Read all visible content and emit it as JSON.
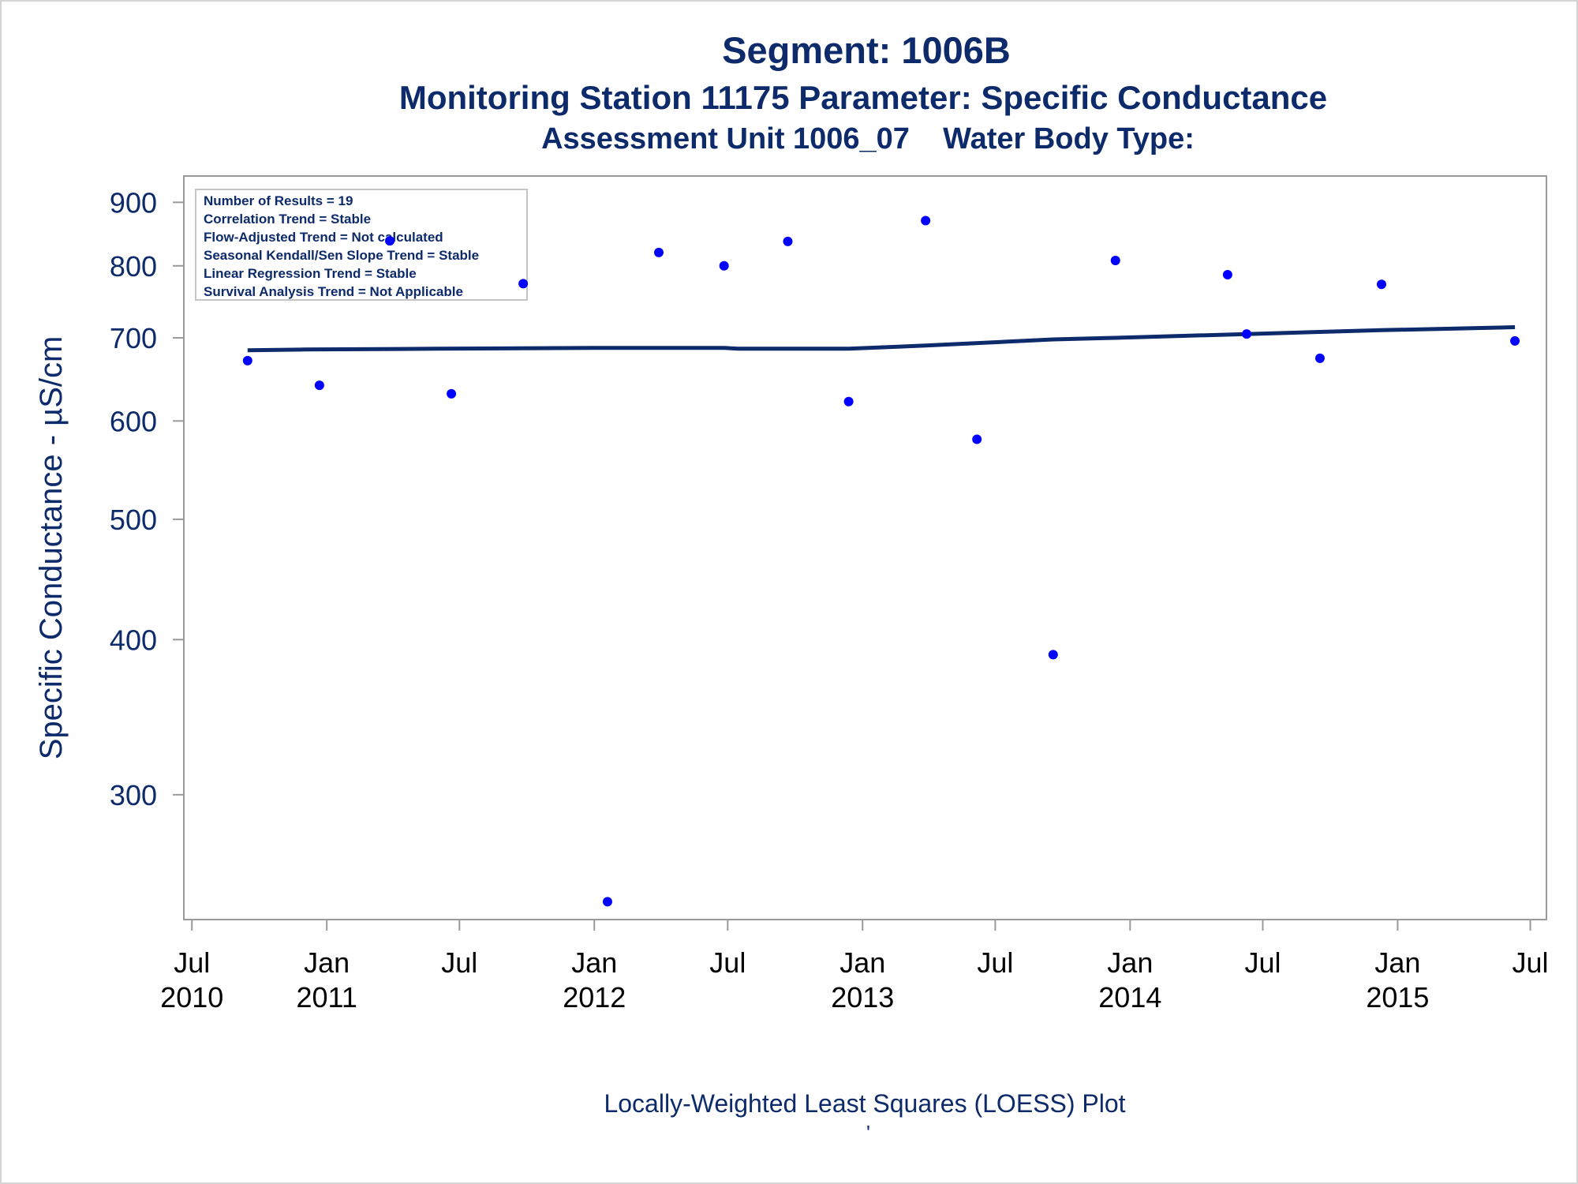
{
  "chart_data": {
    "type": "scatter",
    "title": "Segment: 1006B",
    "subtitle": "Monitoring Station 11175 Parameter: Specific Conductance",
    "subtitle2": "Assessment Unit 1006_07    Water Body Type:",
    "ylabel": "Specific Conductance -  µS/cm",
    "xlabel": "",
    "footnote": "Locally-Weighted Least Squares (LOESS) Plot",
    "footnote_mark": "'",
    "y_scale": "log",
    "ylim": [
      238,
      945
    ],
    "yticks": [
      300,
      400,
      500,
      600,
      700,
      800,
      900
    ],
    "xlim": [
      "2010-06-20",
      "2015-07-23"
    ],
    "xticks": [
      {
        "date": "2010-07-01",
        "line1": "Jul",
        "line2": "2010"
      },
      {
        "date": "2011-01-01",
        "line1": "Jan",
        "line2": "2011"
      },
      {
        "date": "2011-07-01",
        "line1": "Jul",
        "line2": ""
      },
      {
        "date": "2012-01-01",
        "line1": "Jan",
        "line2": "2012"
      },
      {
        "date": "2012-07-01",
        "line1": "Jul",
        "line2": ""
      },
      {
        "date": "2013-01-01",
        "line1": "Jan",
        "line2": "2013"
      },
      {
        "date": "2013-07-01",
        "line1": "Jul",
        "line2": ""
      },
      {
        "date": "2014-01-01",
        "line1": "Jan",
        "line2": "2014"
      },
      {
        "date": "2014-07-01",
        "line1": "Jul",
        "line2": ""
      },
      {
        "date": "2015-01-01",
        "line1": "Jan",
        "line2": "2015"
      },
      {
        "date": "2015-07-01",
        "line1": "Jul",
        "line2": ""
      }
    ],
    "legend_position": "top-left",
    "stats": [
      "Number of Results = 19",
      "Correlation Trend = Stable",
      "Flow-Adjusted Trend = Not calculated",
      "Seasonal Kendall/Sen Slope Trend = Stable",
      "Linear Regression Trend = Stable",
      "Survival Analysis Trend = Not Applicable"
    ],
    "points": [
      {
        "x": "2010-09-15",
        "y": 671
      },
      {
        "x": "2010-12-22",
        "y": 641
      },
      {
        "x": "2011-03-28",
        "y": 838
      },
      {
        "x": "2011-06-20",
        "y": 631
      },
      {
        "x": "2011-09-26",
        "y": 774
      },
      {
        "x": "2012-01-19",
        "y": 246
      },
      {
        "x": "2012-03-29",
        "y": 820
      },
      {
        "x": "2012-06-26",
        "y": 800
      },
      {
        "x": "2012-09-21",
        "y": 837
      },
      {
        "x": "2012-12-13",
        "y": 622
      },
      {
        "x": "2013-03-28",
        "y": 870
      },
      {
        "x": "2013-06-06",
        "y": 580
      },
      {
        "x": "2013-09-18",
        "y": 389
      },
      {
        "x": "2013-12-12",
        "y": 808
      },
      {
        "x": "2014-05-14",
        "y": 787
      },
      {
        "x": "2014-06-09",
        "y": 705
      },
      {
        "x": "2014-09-17",
        "y": 674
      },
      {
        "x": "2014-12-10",
        "y": 773
      },
      {
        "x": "2015-06-10",
        "y": 696
      }
    ],
    "loess": [
      {
        "x": "2010-09-15",
        "y": 684
      },
      {
        "x": "2010-12-01",
        "y": 685
      },
      {
        "x": "2011-06-01",
        "y": 686
      },
      {
        "x": "2012-01-01",
        "y": 687
      },
      {
        "x": "2012-06-26",
        "y": 687
      },
      {
        "x": "2012-07-15",
        "y": 686
      },
      {
        "x": "2012-12-13",
        "y": 686
      },
      {
        "x": "2013-03-28",
        "y": 690
      },
      {
        "x": "2013-09-18",
        "y": 698
      },
      {
        "x": "2013-12-12",
        "y": 700
      },
      {
        "x": "2014-06-09",
        "y": 705
      },
      {
        "x": "2014-12-10",
        "y": 710
      },
      {
        "x": "2015-06-10",
        "y": 714
      }
    ],
    "colors": {
      "text": "#0d2a6b",
      "marker": "#0000ff",
      "line": "#0d2a6b",
      "axis": "#9a9a9a",
      "legend_border": "#c4c4c4"
    }
  }
}
